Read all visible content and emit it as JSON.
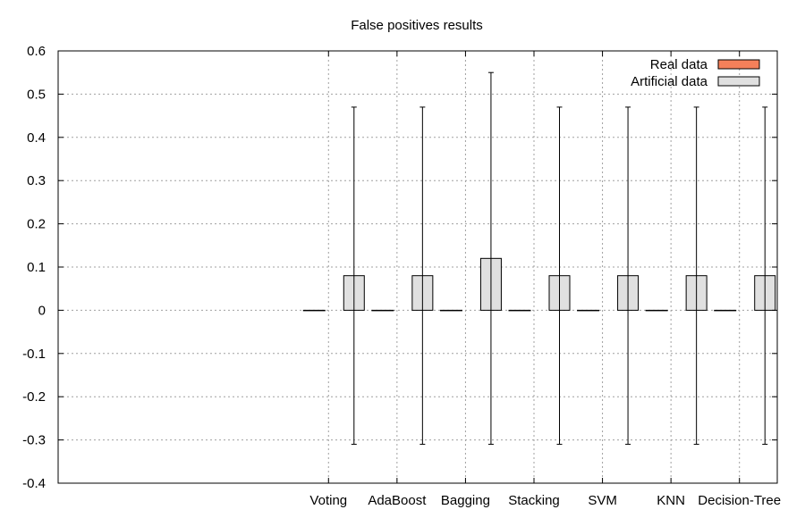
{
  "chart_data": {
    "type": "bar",
    "title": "False positives results",
    "xlabel": "",
    "ylabel": "",
    "ylim": [
      -0.4,
      0.6
    ],
    "yticks": [
      -0.4,
      -0.3,
      -0.2,
      -0.1,
      0,
      0.1,
      0.2,
      0.3,
      0.4,
      0.5,
      0.6
    ],
    "ytick_labels": [
      "-0.4",
      "-0.3",
      "-0.2",
      "-0.1",
      "0",
      "0.1",
      "0.2",
      "0.3",
      "0.4",
      "0.5",
      "0.6"
    ],
    "categories": [
      "Voting",
      "AdaBoost",
      "Bagging",
      "Stacking",
      "SVM",
      "KNN",
      "Decision-Tree"
    ],
    "grid": true,
    "legend_position": "top-right",
    "series": [
      {
        "name": "Real data",
        "color": "#f4805a",
        "values": [
          0,
          0,
          0,
          0,
          0,
          0,
          0
        ]
      },
      {
        "name": "Artificial data",
        "color": "#e0e0e0",
        "values": [
          0.08,
          0.08,
          0.12,
          0.08,
          0.08,
          0.08,
          0.08
        ],
        "error_low": [
          -0.31,
          -0.31,
          -0.31,
          -0.31,
          -0.31,
          -0.31,
          -0.31
        ],
        "error_high": [
          0.47,
          0.47,
          0.55,
          0.47,
          0.47,
          0.47,
          0.47
        ]
      }
    ]
  }
}
